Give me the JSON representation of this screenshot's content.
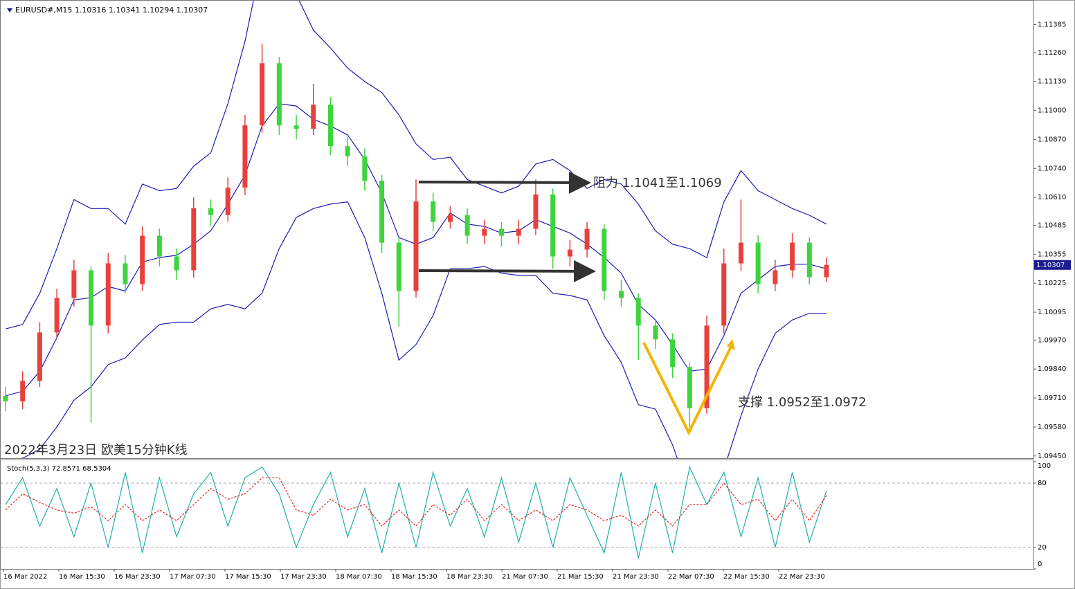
{
  "chart_data": {
    "type": "candlestick",
    "title": "EURUSD#,M15  1.10316 1.10341 1.10294 1.10307",
    "subtitle": "2022年3月23日 欧美15分钟K线",
    "annotations": [
      "阻力 1.1041至1.1069",
      "支撑 1.0952至1.0972"
    ],
    "x_labels": [
      "16 Mar 2022",
      "16 Mar 15:30",
      "16 Mar 23:30",
      "17 Mar 07:30",
      "17 Mar 15:30",
      "17 Mar 23:30",
      "18 Mar 07:30",
      "18 Mar 15:30",
      "18 Mar 23:30",
      "21 Mar 07:30",
      "21 Mar 15:30",
      "21 Mar 23:30",
      "22 Mar 07:30",
      "22 Mar 15:30",
      "22 Mar 23:30"
    ],
    "open": [
      1.0972,
      1.09695,
      1.09787,
      1.10004,
      1.10159,
      1.10283,
      1.10035,
      1.10314,
      1.10221,
      1.10438,
      1.10345,
      1.10283,
      1.10561,
      1.10531,
      1.10654,
      1.10933,
      1.11212,
      1.10933,
      1.10918,
      1.11026,
      1.1084,
      1.10794,
      1.10685,
      1.10407,
      1.1019,
      1.10592,
      1.105,
      1.10531,
      1.10438,
      1.10469,
      1.10438,
      1.10469,
      1.10623,
      1.10345,
      1.10376,
      1.10469,
      1.1019,
      1.10159,
      1.10035,
      1.09973,
      1.09849,
      1.09664,
      1.10035,
      1.10314,
      1.10407,
      1.10221,
      1.10283,
      1.10407,
      1.10252
    ],
    "high": [
      1.0976,
      1.0983,
      1.1005,
      1.102,
      1.1033,
      1.103,
      1.1036,
      1.1035,
      1.1048,
      1.1047,
      1.1038,
      1.1061,
      1.106,
      1.107,
      1.1098,
      1.113,
      1.1124,
      1.1098,
      1.1112,
      1.1106,
      1.1088,
      1.1083,
      1.1071,
      1.1043,
      1.1069,
      1.1063,
      1.1057,
      1.1056,
      1.1051,
      1.105,
      1.1051,
      1.1069,
      1.1065,
      1.1042,
      1.105,
      1.1049,
      1.1024,
      1.1018,
      1.1006,
      1.1,
      1.0987,
      1.1008,
      1.1038,
      1.106,
      1.1044,
      1.1033,
      1.1045,
      1.1043,
      1.10341
    ],
    "low": [
      1.0965,
      1.0966,
      1.0976,
      1.0998,
      1.1012,
      1.096,
      1.1,
      1.1018,
      1.1019,
      1.103,
      1.1024,
      1.1025,
      1.1048,
      1.105,
      1.1062,
      1.109,
      1.1089,
      1.1087,
      1.1089,
      1.108,
      1.1075,
      1.1064,
      1.1036,
      1.1003,
      1.1016,
      1.1046,
      1.1047,
      1.104,
      1.104,
      1.1039,
      1.104,
      1.1044,
      1.1029,
      1.103,
      1.1034,
      1.1015,
      1.1012,
      1.0988,
      1.0993,
      1.098,
      1.0956,
      1.0964,
      1.1,
      1.1028,
      1.1018,
      1.1019,
      1.1025,
      1.1022,
      1.1023
    ],
    "close": [
      1.09695,
      1.09787,
      1.10004,
      1.10159,
      1.10283,
      1.10035,
      1.10314,
      1.10221,
      1.10438,
      1.10345,
      1.10283,
      1.10561,
      1.10531,
      1.10654,
      1.10933,
      1.11212,
      1.10933,
      1.10918,
      1.11026,
      1.1084,
      1.10794,
      1.10685,
      1.10407,
      1.1019,
      1.10592,
      1.105,
      1.10531,
      1.10438,
      1.10469,
      1.10438,
      1.10469,
      1.10623,
      1.10345,
      1.10376,
      1.10469,
      1.1019,
      1.10159,
      1.10035,
      1.09973,
      1.09849,
      1.09664,
      1.10035,
      1.10314,
      1.10407,
      1.10221,
      1.10283,
      1.10407,
      1.10252,
      1.10307
    ],
    "up_color": "#e8413b",
    "down_color": "#3ed43e",
    "bands": {
      "color": "#1c1cb0",
      "upper": [
        1.1002,
        1.1004,
        1.1018,
        1.1038,
        1.106,
        1.1056,
        1.1056,
        1.1049,
        1.1067,
        1.1064,
        1.1065,
        1.1075,
        1.1081,
        1.1103,
        1.1131,
        1.1168,
        1.1168,
        1.1152,
        1.1136,
        1.1128,
        1.1119,
        1.1113,
        1.1108,
        1.1098,
        1.1085,
        1.1078,
        1.1079,
        1.1069,
        1.1066,
        1.1063,
        1.1066,
        1.1076,
        1.1078,
        1.1073,
        1.1065,
        1.1069,
        1.1067,
        1.1058,
        1.1046,
        1.104,
        1.1038,
        1.1034,
        1.1059,
        1.1073,
        1.1064,
        1.106,
        1.1056,
        1.1053,
        1.1049
      ],
      "middle": [
        1.0972,
        1.0974,
        1.0983,
        1.0998,
        1.1015,
        1.1016,
        1.1021,
        1.1019,
        1.1032,
        1.1034,
        1.1035,
        1.104,
        1.1046,
        1.1058,
        1.1071,
        1.1093,
        1.1103,
        1.1102,
        1.1096,
        1.1093,
        1.1089,
        1.1078,
        1.1063,
        1.1043,
        1.104,
        1.1043,
        1.1054,
        1.1049,
        1.1048,
        1.1045,
        1.1046,
        1.1051,
        1.1048,
        1.1045,
        1.104,
        1.1034,
        1.1027,
        1.1013,
        1.1006,
        1.0995,
        1.0983,
        1.0984,
        1.0999,
        1.1018,
        1.1024,
        1.103,
        1.1031,
        1.1031,
        1.1029
      ],
      "lower": [
        1.0942,
        1.0944,
        1.0948,
        1.0958,
        1.097,
        1.0976,
        1.0986,
        1.0989,
        1.0997,
        1.1004,
        1.1005,
        1.1005,
        1.1011,
        1.1013,
        1.1011,
        1.1018,
        1.1038,
        1.1052,
        1.1056,
        1.1058,
        1.1059,
        1.1043,
        1.1018,
        1.0988,
        1.0995,
        1.1008,
        1.1029,
        1.1029,
        1.103,
        1.1027,
        1.1026,
        1.1026,
        1.1018,
        1.1017,
        1.1015,
        1.0999,
        1.0987,
        1.0968,
        1.0966,
        1.095,
        1.0928,
        1.0934,
        1.0939,
        1.0963,
        1.0984,
        1.1,
        1.1006,
        1.1009,
        1.1009
      ]
    },
    "ylim": [
      1.0944,
      1.1148
    ],
    "yticks": [
      1.11385,
      {
        "value": 1.1126,
        "label": "1.11260"
      },
      {
        "value": 1.1113,
        "label": "1.11130"
      },
      {
        "value": 1.11,
        "label": "1.11000"
      },
      {
        "value": 1.1087,
        "label": "1.10870"
      },
      {
        "value": 1.1074,
        "label": "1.10740"
      },
      {
        "value": 1.1061,
        "label": "1.10610"
      },
      1.10485,
      1.10355,
      1.10225,
      1.10095,
      {
        "value": 1.0997,
        "label": "1.09970"
      },
      {
        "value": 1.0984,
        "label": "1.09840"
      },
      {
        "value": 1.0971,
        "label": "1.09710"
      },
      {
        "value": 1.0958,
        "label": "1.09580"
      },
      {
        "value": 1.0945,
        "label": "1.09450"
      }
    ],
    "stochastic": {
      "type": "line",
      "title": "Stoch(5,3,3) 72.8571 68.5304",
      "main_color": "#1fb0a8",
      "signal_color": "#e02828",
      "main": [
        60,
        85,
        40,
        75,
        30,
        80,
        20,
        90,
        15,
        85,
        30,
        70,
        90,
        40,
        85,
        95,
        70,
        20,
        60,
        90,
        30,
        75,
        15,
        80,
        20,
        90,
        40,
        75,
        30,
        85,
        25,
        80,
        20,
        85,
        50,
        15,
        90,
        10,
        80,
        15,
        95,
        60,
        90,
        30,
        85,
        20,
        90,
        25,
        72.8571
      ],
      "signal": [
        55,
        70,
        62,
        55,
        52,
        58,
        45,
        60,
        45,
        55,
        45,
        60,
        75,
        65,
        70,
        85,
        85,
        55,
        50,
        65,
        55,
        60,
        40,
        55,
        40,
        60,
        50,
        65,
        45,
        60,
        45,
        55,
        45,
        60,
        55,
        45,
        50,
        40,
        55,
        40,
        60,
        60,
        80,
        60,
        65,
        45,
        65,
        45,
        68.5304
      ],
      "ylim": [
        0,
        100
      ],
      "yticks": [
        100,
        80,
        20,
        0
      ],
      "levels": [
        80,
        20
      ]
    }
  }
}
